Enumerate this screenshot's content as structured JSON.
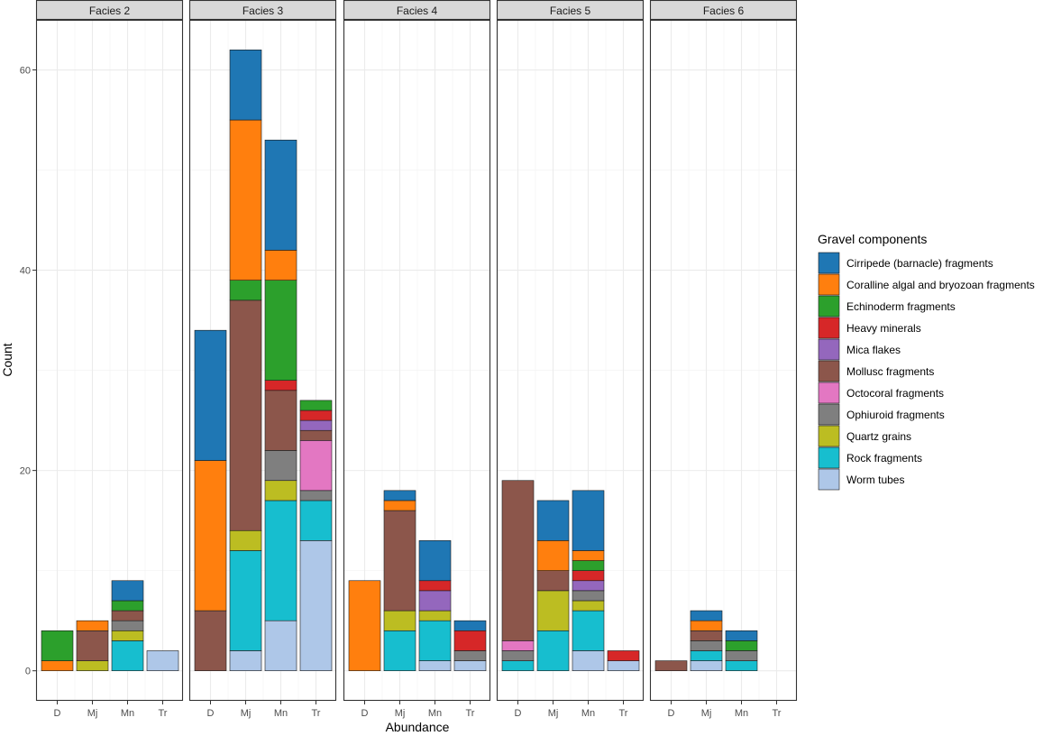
{
  "chart_data": {
    "type": "bar",
    "stacked": true,
    "facet_titles": [
      "Facies 2",
      "Facies 3",
      "Facies 4",
      "Facies 5",
      "Facies 6"
    ],
    "categories": [
      "D",
      "Mj",
      "Mn",
      "Tr"
    ],
    "xlabel": "Abundance",
    "ylabel": "Count",
    "ylim": [
      -3,
      65
    ],
    "yticks": [
      0,
      20,
      40,
      60
    ],
    "grid": true,
    "legend": {
      "title": "Gravel components",
      "position": "right",
      "entries": [
        {
          "name": "Cirripede (barnacle) fragments",
          "color": "#1f77b4"
        },
        {
          "name": "Coralline algal and bryozoan fragments",
          "color": "#ff7f0e"
        },
        {
          "name": "Echinoderm fragments",
          "color": "#2ca02c"
        },
        {
          "name": "Heavy minerals",
          "color": "#d62728"
        },
        {
          "name": "Mica flakes",
          "color": "#9467bd"
        },
        {
          "name": "Mollusc fragments",
          "color": "#8c564b"
        },
        {
          "name": "Octocoral fragments",
          "color": "#e377c2"
        },
        {
          "name": "Ophiuroid fragments",
          "color": "#7f7f7f"
        },
        {
          "name": "Quartz grains",
          "color": "#bcbd22"
        },
        {
          "name": "Rock fragments",
          "color": "#17becf"
        },
        {
          "name": "Worm tubes",
          "color": "#aec7e8"
        }
      ]
    },
    "facets": [
      {
        "title": "Facies 2",
        "bars": {
          "D": [
            [
              1,
              1
            ],
            [
              2,
              3
            ]
          ],
          "Mj": [
            [
              8,
              1
            ],
            [
              5,
              3
            ],
            [
              1,
              1
            ]
          ],
          "Mn": [
            [
              9,
              3
            ],
            [
              8,
              1
            ],
            [
              7,
              1
            ],
            [
              5,
              1
            ],
            [
              2,
              1
            ],
            [
              0,
              2
            ]
          ],
          "Tr": [
            [
              10,
              2
            ]
          ]
        }
      },
      {
        "title": "Facies 3",
        "bars": {
          "D": [
            [
              5,
              6
            ],
            [
              1,
              15
            ],
            [
              0,
              13
            ]
          ],
          "Mj": [
            [
              10,
              2
            ],
            [
              9,
              10
            ],
            [
              8,
              2
            ],
            [
              5,
              23
            ],
            [
              2,
              2
            ],
            [
              1,
              16
            ],
            [
              0,
              7
            ]
          ],
          "Mn": [
            [
              10,
              5
            ],
            [
              9,
              12
            ],
            [
              8,
              2
            ],
            [
              7,
              3
            ],
            [
              5,
              6
            ],
            [
              3,
              1
            ],
            [
              2,
              10
            ],
            [
              1,
              3
            ],
            [
              0,
              11
            ]
          ],
          "Tr": [
            [
              10,
              13
            ],
            [
              9,
              4
            ],
            [
              7,
              1
            ],
            [
              6,
              5
            ],
            [
              5,
              1
            ],
            [
              4,
              1
            ],
            [
              3,
              1
            ],
            [
              2,
              1
            ]
          ]
        }
      },
      {
        "title": "Facies 4",
        "bars": {
          "D": [
            [
              1,
              9
            ]
          ],
          "Mj": [
            [
              9,
              4
            ],
            [
              8,
              2
            ],
            [
              5,
              10
            ],
            [
              1,
              1
            ],
            [
              0,
              1
            ]
          ],
          "Mn": [
            [
              10,
              1
            ],
            [
              9,
              4
            ],
            [
              8,
              1
            ],
            [
              4,
              2
            ],
            [
              3,
              1
            ],
            [
              0,
              4
            ]
          ],
          "Tr": [
            [
              10,
              1
            ],
            [
              7,
              1
            ],
            [
              3,
              2
            ],
            [
              0,
              1
            ]
          ]
        }
      },
      {
        "title": "Facies 5",
        "bars": {
          "D": [
            [
              9,
              1
            ],
            [
              7,
              1
            ],
            [
              6,
              1
            ],
            [
              5,
              16
            ]
          ],
          "Mj": [
            [
              9,
              4
            ],
            [
              8,
              4
            ],
            [
              5,
              2
            ],
            [
              1,
              3
            ],
            [
              0,
              4
            ]
          ],
          "Mn": [
            [
              10,
              2
            ],
            [
              9,
              4
            ],
            [
              8,
              1
            ],
            [
              7,
              1
            ],
            [
              4,
              1
            ],
            [
              3,
              1
            ],
            [
              2,
              1
            ],
            [
              1,
              1
            ],
            [
              0,
              6
            ]
          ],
          "Tr": [
            [
              10,
              1
            ],
            [
              3,
              1
            ]
          ]
        }
      },
      {
        "title": "Facies 6",
        "bars": {
          "D": [
            [
              5,
              1
            ]
          ],
          "Mj": [
            [
              10,
              1
            ],
            [
              9,
              1
            ],
            [
              7,
              1
            ],
            [
              5,
              1
            ],
            [
              1,
              1
            ],
            [
              0,
              1
            ]
          ],
          "Mn": [
            [
              9,
              1
            ],
            [
              7,
              1
            ],
            [
              2,
              1
            ],
            [
              0,
              1
            ]
          ],
          "Tr": []
        }
      }
    ]
  }
}
